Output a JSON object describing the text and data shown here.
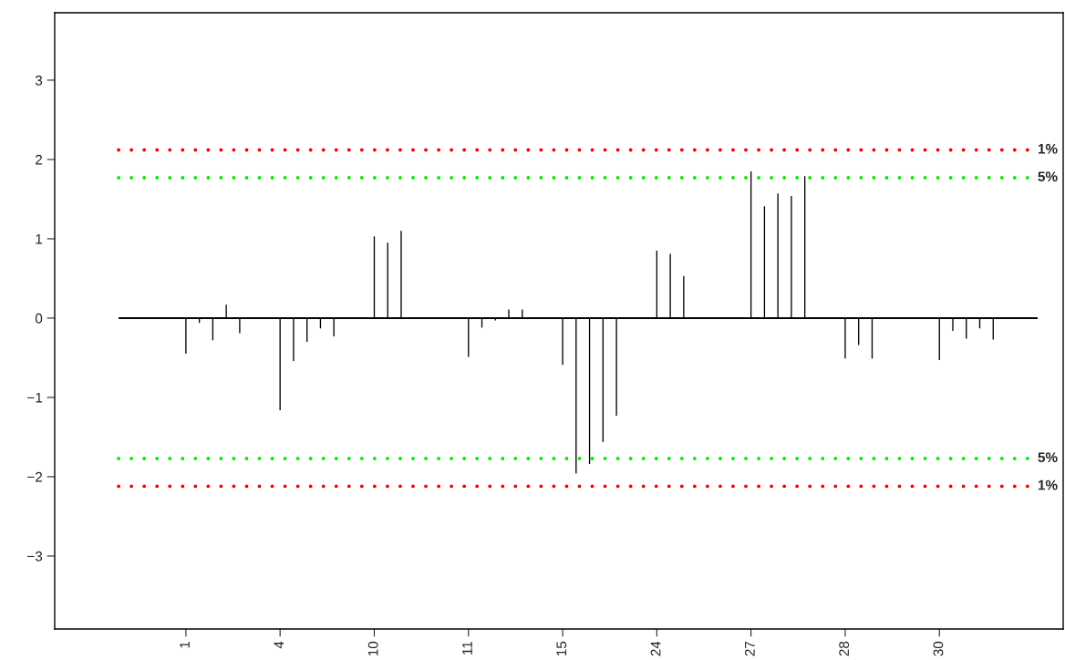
{
  "chart_data": {
    "type": "bar",
    "categories": [
      null,
      null,
      null,
      null,
      null,
      "1",
      null,
      null,
      null,
      null,
      null,
      null,
      "4",
      null,
      null,
      null,
      null,
      null,
      null,
      "10",
      null,
      null,
      null,
      null,
      null,
      null,
      "11",
      null,
      null,
      null,
      null,
      null,
      null,
      "15",
      null,
      null,
      null,
      null,
      null,
      null,
      "24",
      null,
      null,
      null,
      null,
      null,
      null,
      "27",
      null,
      null,
      null,
      null,
      null,
      null,
      "28",
      null,
      null,
      null,
      null,
      null,
      null,
      "30",
      null,
      null,
      null,
      null,
      null,
      null,
      null
    ],
    "values": [
      null,
      null,
      null,
      null,
      null,
      -0.45,
      -0.06,
      -0.28,
      0.17,
      -0.19,
      null,
      null,
      -1.16,
      -0.54,
      -0.3,
      -0.13,
      -0.23,
      null,
      null,
      1.03,
      0.95,
      1.1,
      null,
      null,
      null,
      null,
      -0.49,
      -0.12,
      -0.03,
      0.11,
      0.11,
      null,
      null,
      -0.59,
      -1.96,
      -1.84,
      -1.56,
      -1.23,
      null,
      null,
      0.85,
      0.81,
      0.53,
      null,
      null,
      null,
      null,
      1.85,
      1.41,
      1.57,
      1.54,
      1.79,
      null,
      null,
      -0.51,
      -0.34,
      -0.51,
      null,
      null,
      null,
      null,
      -0.53,
      -0.16,
      -0.26,
      -0.13,
      -0.27,
      null,
      null,
      null
    ],
    "color": "#000000",
    "ylim": [
      -3.92,
      3.85
    ],
    "yticks": [
      -3,
      -2,
      -1,
      0,
      1,
      2,
      3
    ],
    "ref_lines": [
      {
        "axis": "y",
        "value": 0,
        "color": "#000000",
        "line_style": "solid"
      },
      {
        "axis": "y",
        "value": 2.12,
        "color": "#ff0000",
        "line_style": "dotted"
      },
      {
        "axis": "y",
        "value": 1.77,
        "color": "#00ee00",
        "line_style": "dotted"
      },
      {
        "axis": "y",
        "value": -1.77,
        "color": "#00ee00",
        "line_style": "dotted"
      },
      {
        "axis": "y",
        "value": -2.12,
        "color": "#ff0000",
        "line_style": "dotted"
      }
    ],
    "annotations": [
      "1%",
      "5%",
      "5%",
      "1%"
    ],
    "grid": false
  }
}
